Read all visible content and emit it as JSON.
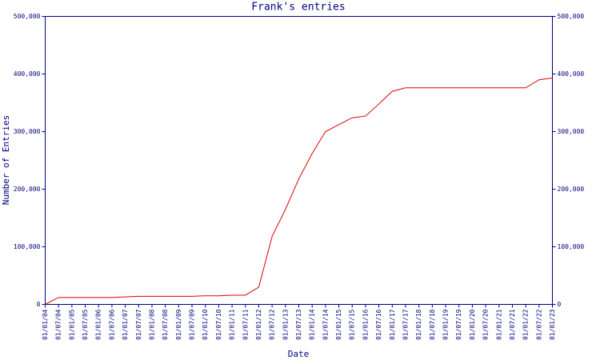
{
  "chart_data": {
    "type": "line",
    "title": "Frank's entries",
    "x_label": "Date",
    "y_label": "Number of Entries",
    "categories": [
      "01/01/04",
      "01/07/04",
      "01/01/05",
      "01/07/05",
      "01/01/06",
      "01/07/06",
      "01/01/07",
      "01/07/07",
      "01/01/08",
      "01/07/08",
      "01/01/09",
      "01/07/09",
      "01/01/10",
      "01/07/10",
      "01/01/11",
      "01/07/11",
      "01/01/12",
      "01/07/12",
      "01/01/13",
      "01/07/13",
      "01/01/14",
      "01/07/14",
      "01/01/15",
      "01/07/15",
      "01/01/16",
      "01/07/16",
      "01/01/17",
      "01/07/17",
      "01/01/18",
      "01/07/18",
      "01/01/19",
      "01/07/19",
      "01/01/20",
      "01/07/20",
      "01/01/21",
      "01/07/21",
      "01/01/22",
      "01/07/22",
      "01/01/23"
    ],
    "values": [
      0,
      12000,
      12000,
      12000,
      12000,
      12000,
      13000,
      14000,
      14000,
      14000,
      14000,
      14000,
      15000,
      15000,
      16000,
      16000,
      30000,
      118000,
      165000,
      218000,
      262000,
      300000,
      312000,
      324000,
      327000,
      348000,
      370000,
      376000,
      376000,
      376000,
      376000,
      376000,
      376000,
      376000,
      376000,
      376000,
      376000,
      390000,
      393000
    ],
    "color": "#dd0000",
    "ylim": [
      0,
      500000
    ],
    "yticks": [
      {
        "value": 0,
        "label": "0"
      },
      {
        "value": 100000,
        "label": "100,000"
      },
      {
        "value": 200000,
        "label": "200,000"
      },
      {
        "value": 300000,
        "label": "300,000"
      },
      {
        "value": 400000,
        "label": "400,000"
      },
      {
        "value": 500000,
        "label": "500,000"
      }
    ],
    "y2lim": [
      0,
      500000
    ],
    "y2ticks": [
      {
        "value": 0,
        "label": "0"
      },
      {
        "value": 100000,
        "label": "100,000"
      },
      {
        "value": 200000,
        "label": "200,000"
      },
      {
        "value": 300000,
        "label": "300,000"
      },
      {
        "value": 400000,
        "label": "400,000"
      },
      {
        "value": 500000,
        "label": "500,000"
      }
    ]
  }
}
